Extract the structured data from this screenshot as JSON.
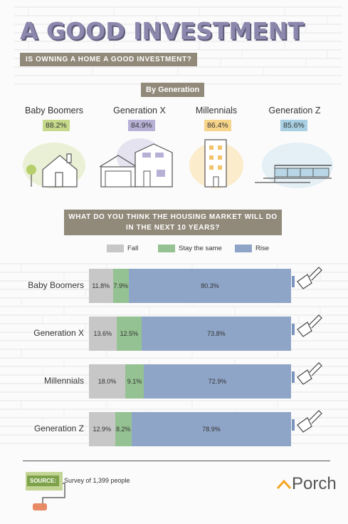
{
  "header": {
    "title": "A GOOD INVESTMENT",
    "subtitle": "IS OWNING A HOME A GOOD INVESTMENT?",
    "section_label": "By Generation"
  },
  "colors": {
    "fall": "#c7c7c7",
    "same": "#95c292",
    "rise": "#8fa5c7",
    "tag": "#918979",
    "title": "#8c87ad"
  },
  "chart_data": [
    {
      "type": "table",
      "title": "By Generation",
      "categories": [
        "Baby Boomers",
        "Generation X",
        "Millennials",
        "Generation Z"
      ],
      "values": [
        "88.2%",
        "84.9%",
        "86.4%",
        "85.6%"
      ],
      "badge_colors": [
        "#c6d88a",
        "#b7b1d6",
        "#f6d48a",
        "#a8d0e2"
      ]
    },
    {
      "type": "bar",
      "stacked": true,
      "orientation": "horizontal",
      "title": "WHAT DO YOU THINK THE HOUSING MARKET WILL DO IN THE NEXT 10 YEARS?",
      "categories": [
        "Baby Boomers",
        "Generation X",
        "Millennials",
        "Generation Z"
      ],
      "series": [
        {
          "name": "Fall",
          "values": [
            11.8,
            13.6,
            18.0,
            12.9
          ],
          "labels": [
            "11.8%",
            "13.6%",
            "18.0%",
            "12.9%"
          ]
        },
        {
          "name": "Stay the same",
          "values": [
            7.9,
            12.5,
            9.1,
            8.2
          ],
          "labels": [
            "7.9%",
            "12.5%",
            "9.1%",
            "8.2%"
          ]
        },
        {
          "name": "Rise",
          "values": [
            80.3,
            73.8,
            72.9,
            78.9
          ],
          "labels": [
            "80.3%",
            "73.8%",
            "72.9%",
            "78.9%"
          ]
        }
      ],
      "xlim": [
        0,
        100
      ],
      "legend": "top"
    }
  ],
  "footer": {
    "source_label": "SOURCE:",
    "source_text": "Survey of 1,399 people",
    "brand": "Porch"
  }
}
